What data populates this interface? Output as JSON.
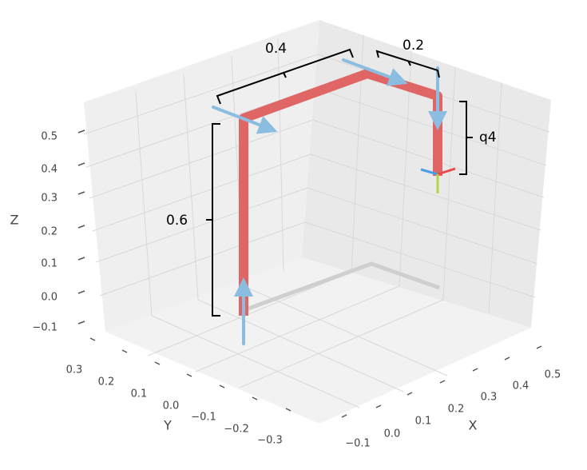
{
  "annotations": {
    "link1": "0.6",
    "link2": "0.4",
    "link3": "0.2",
    "joint4": "q4"
  },
  "axes": {
    "z": {
      "label": "Z",
      "ticks": [
        "0.5",
        "0.4",
        "0.3",
        "0.2",
        "0.1",
        "0.0",
        "−0.1"
      ]
    },
    "y": {
      "label": "Y",
      "ticks": [
        "0.3",
        "0.2",
        "0.1",
        "0.0",
        "−0.1",
        "−0.2",
        "−0.3"
      ]
    },
    "x": {
      "label": "X",
      "ticks": [
        "−0.1",
        "0.0",
        "0.1",
        "0.2",
        "0.3",
        "0.4",
        "0.5"
      ]
    }
  }
}
